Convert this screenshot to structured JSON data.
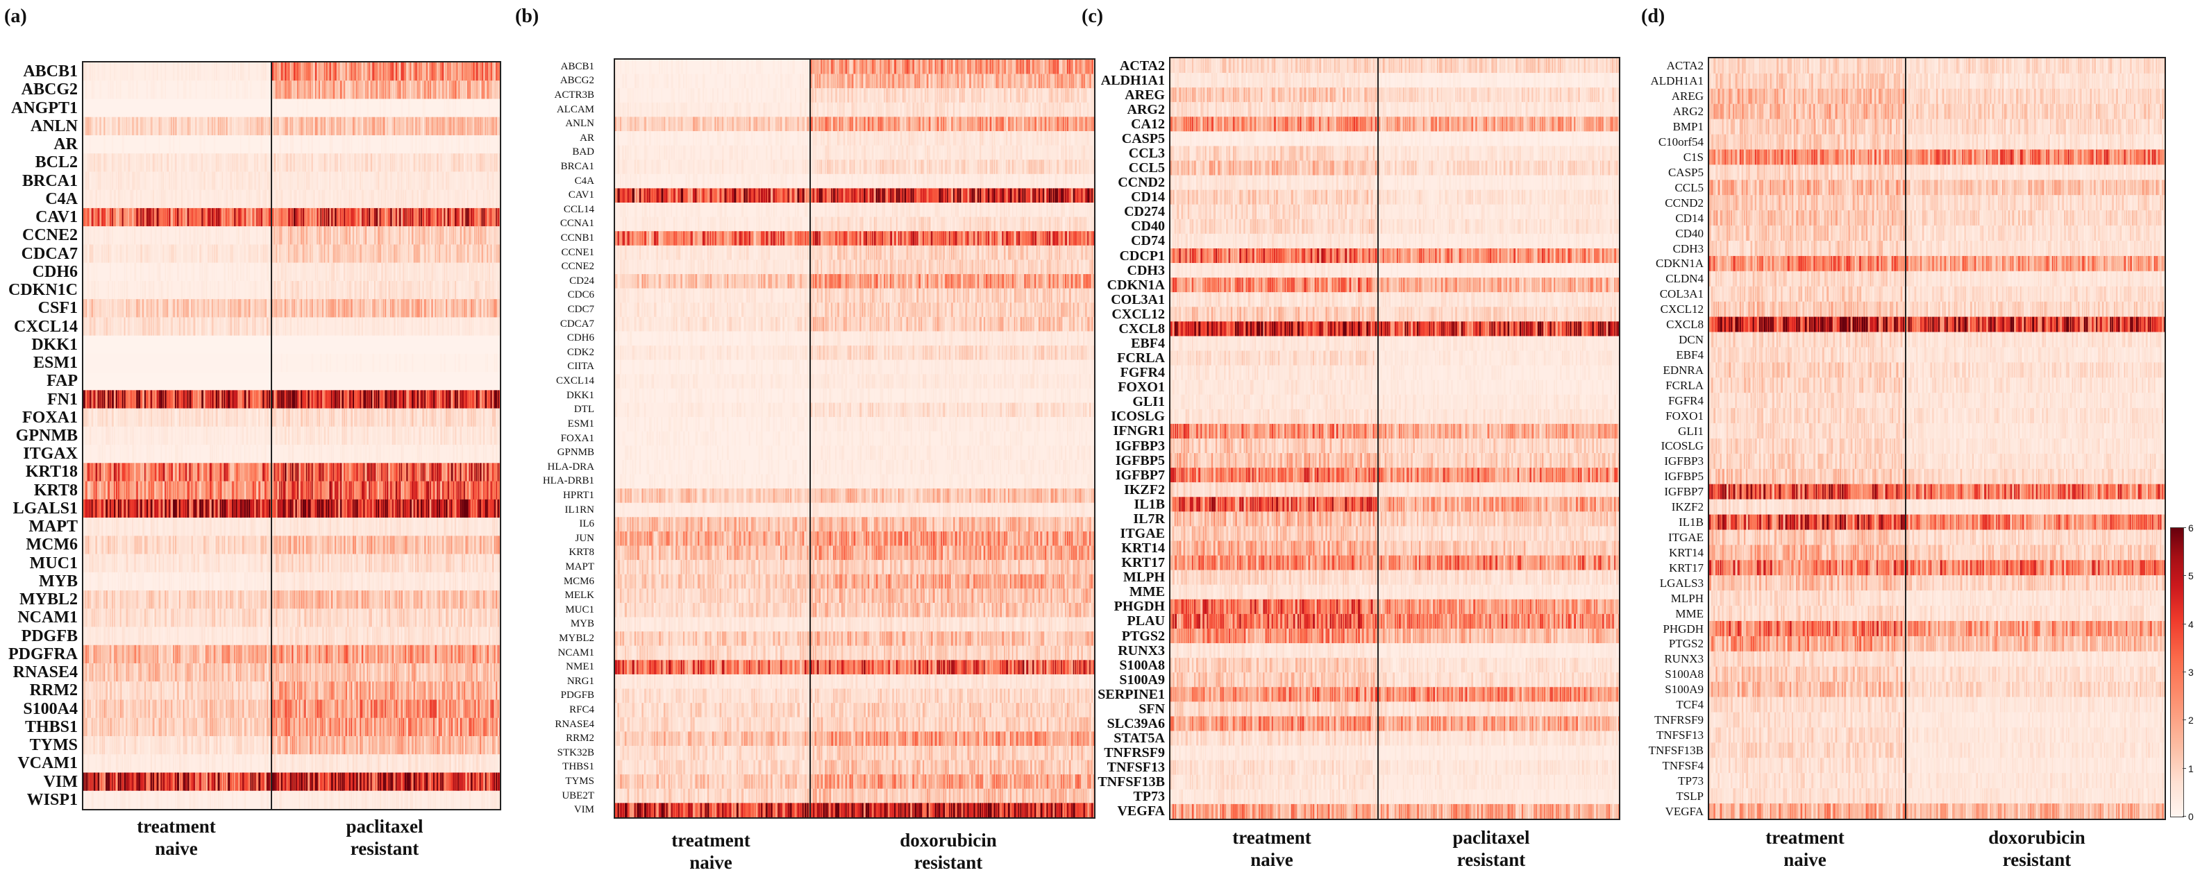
{
  "chart_data": [
    {
      "type": "heatmap",
      "panel_label": "(a)",
      "genes": [
        "ABCB1",
        "ABCG2",
        "ANGPT1",
        "ANLN",
        "AR",
        "BCL2",
        "BRCA1",
        "C4A",
        "CAV1",
        "CCNE2",
        "CDCA7",
        "CDH6",
        "CDKN1C",
        "CSF1",
        "CXCL14",
        "DKK1",
        "ESM1",
        "FAP",
        "FN1",
        "FOXA1",
        "GPNMB",
        "ITGAX",
        "KRT18",
        "KRT8",
        "LGALS1",
        "MAPT",
        "MCM6",
        "MUC1",
        "MYB",
        "MYBL2",
        "NCAM1",
        "PDGFB",
        "PDGFRA",
        "RNASE4",
        "RRM2",
        "S100A4",
        "THBS1",
        "TYMS",
        "VCAM1",
        "VIM",
        "WISP1"
      ],
      "groups": [
        {
          "line1": "treatment",
          "line2": "naive"
        },
        {
          "line1": "paclitaxel",
          "line2": "resistant"
        }
      ],
      "mean_expression": [
        [
          0.35,
          2.6
        ],
        [
          0.25,
          1.9
        ],
        [
          0.15,
          0.2
        ],
        [
          1.1,
          1.5
        ],
        [
          0.2,
          0.25
        ],
        [
          0.6,
          0.8
        ],
        [
          0.5,
          0.55
        ],
        [
          0.45,
          0.5
        ],
        [
          3.8,
          4.0
        ],
        [
          0.4,
          1.3
        ],
        [
          0.6,
          1.2
        ],
        [
          0.3,
          0.6
        ],
        [
          0.35,
          0.7
        ],
        [
          1.3,
          1.6
        ],
        [
          0.8,
          0.5
        ],
        [
          0.1,
          0.15
        ],
        [
          0.15,
          0.2
        ],
        [
          0.1,
          0.15
        ],
        [
          4.6,
          5.1
        ],
        [
          0.7,
          0.9
        ],
        [
          0.4,
          0.6
        ],
        [
          0.3,
          0.35
        ],
        [
          3.3,
          3.9
        ],
        [
          2.6,
          3.6
        ],
        [
          5.3,
          5.5
        ],
        [
          0.5,
          0.6
        ],
        [
          1.0,
          1.6
        ],
        [
          0.6,
          0.9
        ],
        [
          0.3,
          0.5
        ],
        [
          1.1,
          1.6
        ],
        [
          0.9,
          1.0
        ],
        [
          0.5,
          0.7
        ],
        [
          1.8,
          2.3
        ],
        [
          1.4,
          1.5
        ],
        [
          1.0,
          2.0
        ],
        [
          1.3,
          2.6
        ],
        [
          1.2,
          2.4
        ],
        [
          0.7,
          1.7
        ],
        [
          0.4,
          0.6
        ],
        [
          4.7,
          5.1
        ],
        [
          0.3,
          0.4
        ]
      ]
    },
    {
      "type": "heatmap",
      "panel_label": "(b)",
      "genes": [
        "ABCB1",
        "ABCG2",
        "ACTR3B",
        "ALCAM",
        "ANLN",
        "AR",
        "BAD",
        "BRCA1",
        "C4A",
        "CAV1",
        "CCL14",
        "CCNA1",
        "CCNB1",
        "CCNE1",
        "CCNE2",
        "CD24",
        "CDC6",
        "CDC7",
        "CDCA7",
        "CDH6",
        "CDK2",
        "CIITA",
        "CXCL14",
        "DKK1",
        "DTL",
        "ESM1",
        "FOXA1",
        "GPNMB",
        "HLA-DRA",
        "HLA-DRB1",
        "HPRT1",
        "IL1RN",
        "IL6",
        "JUN",
        "KRT8",
        "MAPT",
        "MCM6",
        "MELK",
        "MUC1",
        "MYB",
        "MYBL2",
        "NCAM1",
        "NME1",
        "NRG1",
        "PDGFB",
        "RFC4",
        "RNASE4",
        "RRM2",
        "STK32B",
        "THBS1",
        "TYMS",
        "UBE2T",
        "VIM"
      ],
      "groups": [
        {
          "line1": "treatment",
          "line2": "naive"
        },
        {
          "line1": "doxorubicin",
          "line2": "resistant"
        }
      ],
      "mean_expression": [
        [
          0.25,
          2.4
        ],
        [
          0.3,
          1.8
        ],
        [
          0.3,
          0.9
        ],
        [
          0.4,
          0.7
        ],
        [
          1.3,
          2.2
        ],
        [
          0.3,
          0.6
        ],
        [
          0.4,
          0.6
        ],
        [
          0.5,
          0.9
        ],
        [
          0.3,
          0.4
        ],
        [
          4.3,
          4.8
        ],
        [
          0.35,
          0.5
        ],
        [
          0.4,
          0.8
        ],
        [
          3.0,
          3.4
        ],
        [
          0.6,
          1.1
        ],
        [
          0.5,
          1.0
        ],
        [
          1.4,
          2.2
        ],
        [
          0.5,
          1.1
        ],
        [
          0.6,
          1.2
        ],
        [
          0.7,
          1.3
        ],
        [
          0.3,
          0.5
        ],
        [
          0.5,
          0.9
        ],
        [
          0.3,
          0.4
        ],
        [
          0.4,
          0.5
        ],
        [
          0.3,
          0.35
        ],
        [
          0.4,
          0.8
        ],
        [
          0.3,
          0.4
        ],
        [
          0.3,
          0.35
        ],
        [
          0.3,
          0.4
        ],
        [
          0.3,
          0.4
        ],
        [
          0.3,
          0.35
        ],
        [
          1.3,
          1.5
        ],
        [
          0.4,
          0.5
        ],
        [
          1.5,
          1.6
        ],
        [
          1.9,
          2.4
        ],
        [
          1.6,
          2.1
        ],
        [
          1.0,
          1.3
        ],
        [
          1.2,
          2.0
        ],
        [
          1.0,
          1.5
        ],
        [
          1.0,
          1.4
        ],
        [
          0.5,
          0.7
        ],
        [
          1.2,
          1.6
        ],
        [
          0.9,
          1.1
        ],
        [
          3.3,
          3.7
        ],
        [
          0.5,
          0.6
        ],
        [
          0.8,
          1.0
        ],
        [
          1.0,
          1.2
        ],
        [
          0.9,
          1.2
        ],
        [
          1.5,
          2.2
        ],
        [
          0.9,
          1.2
        ],
        [
          0.9,
          1.4
        ],
        [
          1.3,
          2.2
        ],
        [
          1.0,
          1.4
        ],
        [
          4.6,
          5.1
        ]
      ]
    },
    {
      "type": "heatmap",
      "panel_label": "(c)",
      "genes": [
        "ACTA2",
        "ALDH1A1",
        "AREG",
        "ARG2",
        "CA12",
        "CASP5",
        "CCL3",
        "CCL5",
        "CCND2",
        "CD14",
        "CD274",
        "CD40",
        "CD74",
        "CDCP1",
        "CDH3",
        "CDKN1A",
        "COL3A1",
        "CXCL12",
        "CXCL8",
        "EBF4",
        "FCRLA",
        "FGFR4",
        "FOXO1",
        "GLI1",
        "ICOSLG",
        "IFNGR1",
        "IGFBP3",
        "IGFBP5",
        "IGFBP7",
        "IKZF2",
        "IL1B",
        "IL7R",
        "ITGAE",
        "KRT14",
        "KRT17",
        "MLPH",
        "MME",
        "PHGDH",
        "PLAU",
        "PTGS2",
        "RUNX3",
        "S100A8",
        "S100A9",
        "SERPINE1",
        "SFN",
        "SLC39A6",
        "STAT5A",
        "TNFRSF9",
        "TNFSF13",
        "TNFSF13B",
        "TP73",
        "VEGFA"
      ],
      "groups": [
        {
          "line1": "treatment",
          "line2": "naive"
        },
        {
          "line1": "paclitaxel",
          "line2": "resistant"
        }
      ],
      "mean_expression": [
        [
          1.0,
          1.1
        ],
        [
          0.6,
          0.3
        ],
        [
          1.3,
          0.9
        ],
        [
          0.8,
          0.6
        ],
        [
          2.6,
          2.0
        ],
        [
          0.3,
          0.3
        ],
        [
          1.0,
          0.6
        ],
        [
          1.5,
          0.9
        ],
        [
          0.6,
          0.4
        ],
        [
          1.2,
          0.7
        ],
        [
          0.9,
          0.5
        ],
        [
          1.0,
          0.7
        ],
        [
          0.6,
          0.4
        ],
        [
          3.3,
          2.6
        ],
        [
          0.5,
          0.3
        ],
        [
          2.7,
          1.9
        ],
        [
          0.7,
          0.6
        ],
        [
          1.3,
          1.0
        ],
        [
          5.2,
          4.4
        ],
        [
          0.6,
          0.5
        ],
        [
          0.9,
          0.5
        ],
        [
          0.6,
          0.4
        ],
        [
          0.6,
          0.4
        ],
        [
          0.6,
          0.5
        ],
        [
          0.7,
          0.6
        ],
        [
          2.7,
          1.9
        ],
        [
          1.3,
          1.0
        ],
        [
          1.6,
          1.2
        ],
        [
          3.0,
          2.6
        ],
        [
          0.9,
          0.6
        ],
        [
          3.6,
          2.1
        ],
        [
          1.7,
          1.2
        ],
        [
          1.3,
          0.8
        ],
        [
          1.8,
          1.3
        ],
        [
          2.6,
          2.8
        ],
        [
          1.0,
          0.8
        ],
        [
          0.7,
          0.5
        ],
        [
          3.2,
          2.3
        ],
        [
          3.4,
          2.6
        ],
        [
          2.4,
          1.6
        ],
        [
          0.6,
          0.4
        ],
        [
          1.2,
          0.7
        ],
        [
          1.3,
          0.8
        ],
        [
          2.5,
          2.6
        ],
        [
          1.0,
          0.7
        ],
        [
          2.4,
          2.1
        ],
        [
          0.9,
          0.7
        ],
        [
          0.5,
          0.4
        ],
        [
          0.8,
          0.6
        ],
        [
          0.7,
          0.5
        ],
        [
          0.6,
          0.4
        ],
        [
          2.2,
          2.0
        ]
      ]
    },
    {
      "type": "heatmap",
      "panel_label": "(d)",
      "genes": [
        "ACTA2",
        "ALDH1A1",
        "AREG",
        "ARG2",
        "BMP1",
        "C10orf54",
        "C1S",
        "CASP5",
        "CCL5",
        "CCND2",
        "CD14",
        "CD40",
        "CDH3",
        "CDKN1A",
        "CLDN4",
        "COL3A1",
        "CXCL12",
        "CXCL8",
        "DCN",
        "EBF4",
        "EDNRA",
        "FCRLA",
        "FGFR4",
        "FOXO1",
        "GLI1",
        "ICOSLG",
        "IGFBP3",
        "IGFBP5",
        "IGFBP7",
        "IKZF2",
        "IL1B",
        "ITGAE",
        "KRT14",
        "KRT17",
        "LGALS3",
        "MLPH",
        "MME",
        "PHGDH",
        "PTGS2",
        "RUNX3",
        "S100A8",
        "S100A9",
        "TCF4",
        "TNFRSF9",
        "TNFSF13",
        "TNFSF13B",
        "TNFSF4",
        "TP73",
        "TSLP",
        "VEGFA"
      ],
      "groups": [
        {
          "line1": "treatment",
          "line2": "naive"
        },
        {
          "line1": "doxorubicin",
          "line2": "resistant"
        }
      ],
      "mean_expression": [
        [
          1.0,
          0.9
        ],
        [
          1.2,
          0.7
        ],
        [
          1.6,
          1.0
        ],
        [
          1.7,
          1.1
        ],
        [
          1.3,
          0.9
        ],
        [
          1.1,
          0.7
        ],
        [
          2.5,
          2.9
        ],
        [
          1.0,
          0.6
        ],
        [
          1.8,
          1.4
        ],
        [
          1.3,
          0.9
        ],
        [
          1.4,
          1.0
        ],
        [
          1.2,
          0.8
        ],
        [
          1.1,
          0.7
        ],
        [
          2.7,
          2.3
        ],
        [
          1.0,
          0.6
        ],
        [
          1.1,
          0.8
        ],
        [
          1.4,
          1.0
        ],
        [
          5.3,
          4.5
        ],
        [
          1.0,
          0.7
        ],
        [
          0.9,
          0.6
        ],
        [
          1.2,
          0.8
        ],
        [
          1.1,
          0.7
        ],
        [
          0.9,
          0.6
        ],
        [
          1.0,
          0.7
        ],
        [
          0.9,
          0.6
        ],
        [
          1.0,
          0.6
        ],
        [
          1.1,
          0.7
        ],
        [
          1.3,
          0.9
        ],
        [
          3.8,
          3.0
        ],
        [
          0.8,
          0.5
        ],
        [
          3.9,
          2.7
        ],
        [
          1.3,
          0.9
        ],
        [
          1.8,
          1.2
        ],
        [
          3.1,
          3.0
        ],
        [
          1.5,
          1.1
        ],
        [
          0.9,
          0.6
        ],
        [
          1.0,
          0.7
        ],
        [
          3.0,
          2.3
        ],
        [
          2.2,
          1.6
        ],
        [
          0.9,
          0.6
        ],
        [
          1.3,
          0.8
        ],
        [
          1.6,
          1.0
        ],
        [
          0.9,
          0.6
        ],
        [
          0.8,
          0.5
        ],
        [
          0.9,
          0.6
        ],
        [
          1.0,
          0.6
        ],
        [
          0.8,
          0.5
        ],
        [
          0.8,
          0.6
        ],
        [
          0.8,
          0.6
        ],
        [
          2.0,
          1.7
        ]
      ]
    }
  ],
  "colorbar": {
    "min": 0,
    "max": 6,
    "ticks": [
      "0",
      "1",
      "2",
      "3",
      "4",
      "5",
      "6"
    ],
    "colors": [
      "#fff5f0",
      "#fee0d2",
      "#fcbba1",
      "#fc9272",
      "#fb6a4a",
      "#ef3b2c",
      "#cb181d",
      "#a50f15",
      "#67000d"
    ]
  }
}
